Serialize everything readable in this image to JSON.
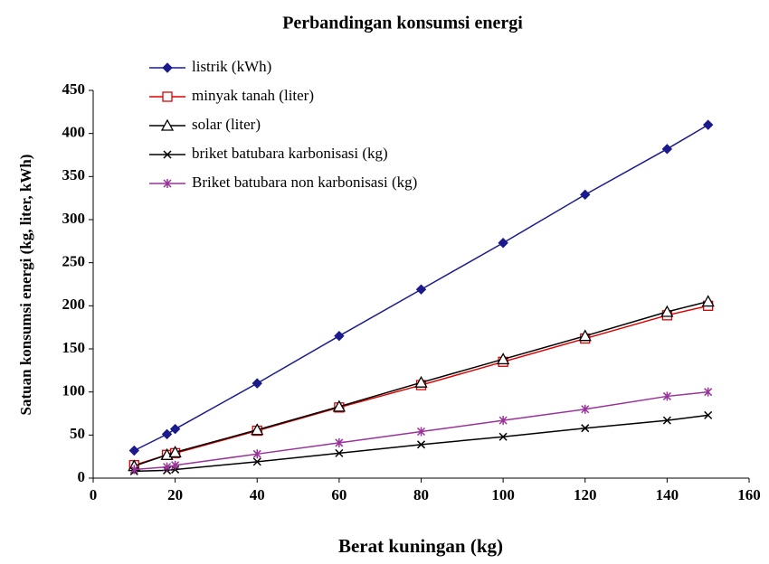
{
  "chart_data": {
    "type": "line",
    "title": "Perbandingan konsumsi energi",
    "xlabel": "Berat kuningan (kg)",
    "ylabel": "Satuan konsumsi energi (kg, liter, kWh)",
    "x": [
      10,
      18,
      20,
      40,
      60,
      80,
      100,
      120,
      140,
      150
    ],
    "series": [
      {
        "name": "listrik (kWh)",
        "color": "#1a1a8c",
        "marker": "diamond",
        "values": [
          32,
          51,
          57,
          110,
          165,
          219,
          273,
          329,
          382,
          410
        ]
      },
      {
        "name": "minyak tanah (liter)",
        "color": "#e00000",
        "marker": "square",
        "values": [
          15,
          27,
          29,
          55,
          82,
          108,
          135,
          162,
          189,
          200
        ]
      },
      {
        "name": "solar (liter)",
        "color": "#000000",
        "marker": "triangle",
        "values": [
          14,
          27,
          30,
          56,
          83,
          111,
          138,
          165,
          193,
          205
        ]
      },
      {
        "name": "briket batubara karbonisasi (kg)",
        "color": "#000000",
        "marker": "x",
        "values": [
          8,
          9,
          10,
          19,
          29,
          39,
          48,
          58,
          67,
          73
        ]
      },
      {
        "name": "Briket batubara non karbonisasi (kg)",
        "color": "#993399",
        "marker": "star",
        "values": [
          10,
          13,
          15,
          28,
          41,
          54,
          67,
          80,
          95,
          100
        ]
      }
    ],
    "xlim": [
      0,
      160
    ],
    "xticks": [
      0,
      20,
      40,
      60,
      80,
      100,
      120,
      140,
      160
    ],
    "ylim": [
      0,
      450
    ],
    "yticks": [
      0,
      50,
      100,
      150,
      200,
      250,
      300,
      350,
      400,
      450
    ],
    "grid": false
  }
}
